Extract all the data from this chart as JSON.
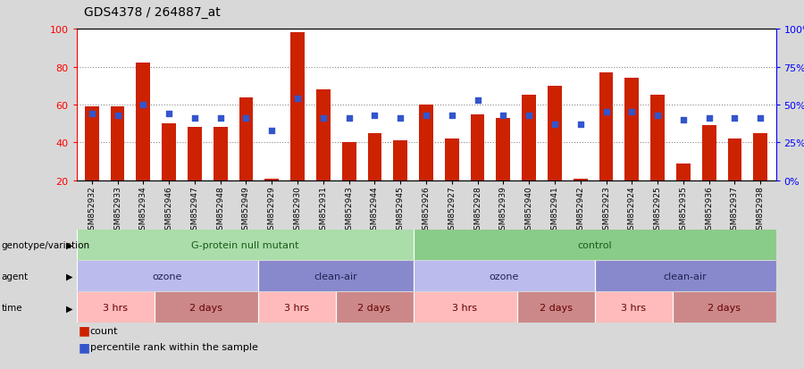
{
  "title": "GDS4378 / 264887_at",
  "samples": [
    "GSM852932",
    "GSM852933",
    "GSM852934",
    "GSM852946",
    "GSM852947",
    "GSM852948",
    "GSM852949",
    "GSM852929",
    "GSM852930",
    "GSM852931",
    "GSM852943",
    "GSM852944",
    "GSM852945",
    "GSM852926",
    "GSM852927",
    "GSM852928",
    "GSM852939",
    "GSM852940",
    "GSM852941",
    "GSM852942",
    "GSM852923",
    "GSM852924",
    "GSM852925",
    "GSM852935",
    "GSM852936",
    "GSM852937",
    "GSM852938"
  ],
  "bar_heights": [
    59,
    59,
    82,
    50,
    48,
    48,
    64,
    21,
    98,
    68,
    40,
    45,
    41,
    60,
    42,
    55,
    53,
    65,
    70,
    21,
    77,
    74,
    65,
    29,
    49,
    42,
    45
  ],
  "dot_values_pct": [
    44,
    43,
    50,
    44,
    41,
    41,
    41,
    33,
    54,
    41,
    41,
    43,
    41,
    43,
    43,
    53,
    43,
    43,
    37,
    37,
    45,
    45,
    43,
    40,
    41,
    41,
    41
  ],
  "bar_color": "#cc2200",
  "dot_color": "#3355cc",
  "background_color": "#d8d8d8",
  "plot_bg": "#ffffff",
  "ylim_left": [
    20,
    100
  ],
  "ylim_right": [
    0,
    100
  ],
  "yticks_left": [
    20,
    40,
    60,
    80,
    100
  ],
  "yticks_right": [
    0,
    25,
    50,
    75,
    100
  ],
  "ytick_labels_right": [
    "0%",
    "25%",
    "50%",
    "75%",
    "100%"
  ],
  "grid_values": [
    40,
    60,
    80
  ],
  "genotype_groups": [
    {
      "label": "G-protein null mutant",
      "start": 0,
      "end": 13,
      "color": "#aaddaa"
    },
    {
      "label": "control",
      "start": 13,
      "end": 27,
      "color": "#88cc88"
    }
  ],
  "agent_groups": [
    {
      "label": "ozone",
      "start": 0,
      "end": 7,
      "color": "#bbbbee"
    },
    {
      "label": "clean-air",
      "start": 7,
      "end": 13,
      "color": "#8888cc"
    },
    {
      "label": "ozone",
      "start": 13,
      "end": 20,
      "color": "#bbbbee"
    },
    {
      "label": "clean-air",
      "start": 20,
      "end": 27,
      "color": "#8888cc"
    }
  ],
  "time_groups": [
    {
      "label": "3 hrs",
      "start": 0,
      "end": 3,
      "color": "#ffbbbb"
    },
    {
      "label": "2 days",
      "start": 3,
      "end": 7,
      "color": "#cc8888"
    },
    {
      "label": "3 hrs",
      "start": 7,
      "end": 10,
      "color": "#ffbbbb"
    },
    {
      "label": "2 days",
      "start": 10,
      "end": 13,
      "color": "#cc8888"
    },
    {
      "label": "3 hrs",
      "start": 13,
      "end": 17,
      "color": "#ffbbbb"
    },
    {
      "label": "2 days",
      "start": 17,
      "end": 20,
      "color": "#cc8888"
    },
    {
      "label": "3 hrs",
      "start": 20,
      "end": 23,
      "color": "#ffbbbb"
    },
    {
      "label": "2 days",
      "start": 23,
      "end": 27,
      "color": "#cc8888"
    }
  ],
  "row_labels": [
    "genotype/variation",
    "agent",
    "time"
  ],
  "legend_items": [
    {
      "color": "#cc2200",
      "label": "count"
    },
    {
      "color": "#3355cc",
      "label": "percentile rank within the sample"
    }
  ]
}
